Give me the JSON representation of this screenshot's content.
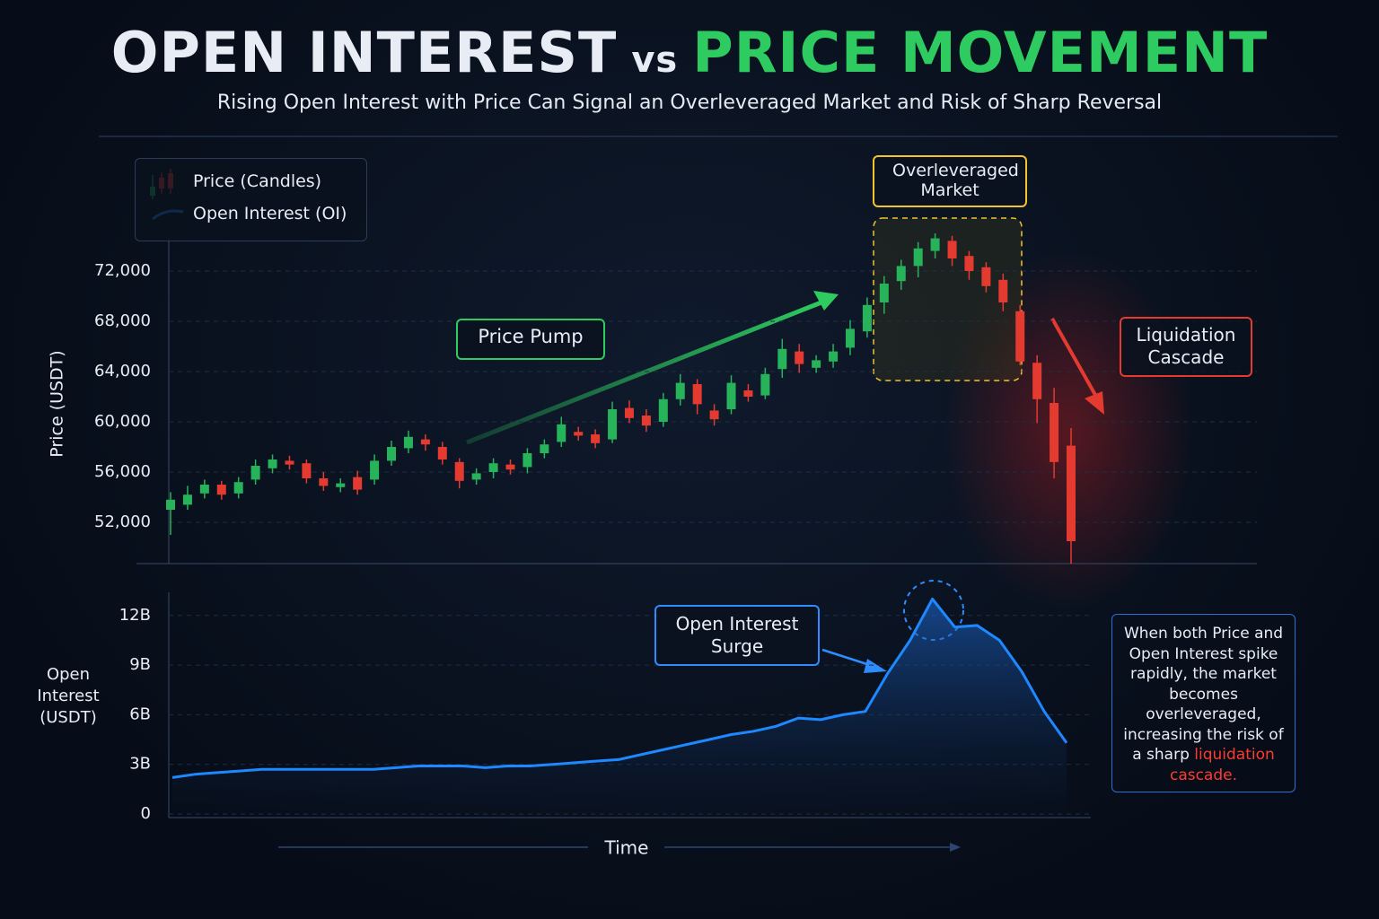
{
  "header": {
    "title_part1": "OPEN INTEREST",
    "title_part2": "vs",
    "title_part3": "PRICE MOVEMENT",
    "title_part3_color": "#2ecc60",
    "subtitle": "Rising Open Interest with Price Can Signal an Overleveraged Market and Risk of Sharp Reversal"
  },
  "chart_data": [
    {
      "type": "candlestick",
      "y_label": "Price (USDT)",
      "ylim": [
        48700,
        75000
      ],
      "yticks": [
        {
          "value": 52000,
          "label": "52,000"
        },
        {
          "value": 56000,
          "label": "56,000"
        },
        {
          "value": 60000,
          "label": "60,000"
        },
        {
          "value": 64000,
          "label": "64,000"
        },
        {
          "value": 68000,
          "label": "68,000"
        },
        {
          "value": 72000,
          "label": "72,000"
        }
      ],
      "grid": true,
      "series": [
        {
          "name": "Price (Candles)",
          "up_color": "#27b35a",
          "down_color": "#e53a30",
          "open": [
            53000,
            53400,
            54300,
            55000,
            54300,
            55400,
            56300,
            56900,
            56700,
            55500,
            54800,
            55600,
            55400,
            56900,
            57900,
            58600,
            58000,
            56800,
            55400,
            56000,
            56600,
            56400,
            57500,
            58400,
            59200,
            59000,
            58600,
            61100,
            60500,
            60000,
            61800,
            63000,
            60900,
            61000,
            62500,
            62100,
            64200,
            65600,
            64300,
            64800,
            65900,
            67200,
            69500,
            71200,
            72400,
            73600,
            74400,
            73200,
            72300,
            71300,
            68800,
            64700,
            61500,
            58100
          ],
          "high": [
            54400,
            54900,
            55400,
            55300,
            55600,
            57000,
            57400,
            57300,
            57000,
            56000,
            55500,
            56100,
            57400,
            58500,
            59300,
            59000,
            58400,
            57100,
            56300,
            57100,
            57000,
            57900,
            58600,
            60400,
            59600,
            59400,
            61600,
            61700,
            61000,
            62300,
            63800,
            63400,
            61400,
            63700,
            63000,
            64300,
            66600,
            66200,
            65300,
            66200,
            68100,
            69900,
            71600,
            72900,
            74300,
            75000,
            74800,
            73600,
            72700,
            71800,
            69300,
            65300,
            62700,
            59500
          ],
          "low": [
            51000,
            53000,
            53900,
            53800,
            53900,
            55000,
            55900,
            56200,
            55100,
            54500,
            54400,
            54200,
            55000,
            56500,
            57500,
            57700,
            56600,
            54700,
            55000,
            55500,
            55800,
            55900,
            57100,
            58000,
            58500,
            57900,
            58300,
            59900,
            59200,
            59600,
            61300,
            60600,
            59700,
            60600,
            61600,
            61800,
            63500,
            63900,
            63900,
            64300,
            65300,
            66700,
            68600,
            70500,
            71500,
            73000,
            72400,
            71300,
            70300,
            68800,
            64500,
            59900,
            55500,
            48700
          ],
          "close": [
            53800,
            54200,
            55000,
            54200,
            55200,
            56500,
            57000,
            56600,
            55500,
            54900,
            55100,
            54600,
            56900,
            58000,
            58800,
            58200,
            57000,
            55300,
            55900,
            56700,
            56200,
            57500,
            58200,
            59800,
            58900,
            58300,
            61000,
            60300,
            59700,
            61800,
            63100,
            61400,
            60200,
            63100,
            62000,
            63800,
            65800,
            64600,
            64900,
            65600,
            67400,
            69300,
            71000,
            72400,
            73800,
            74600,
            73000,
            72000,
            70800,
            69500,
            64800,
            61800,
            56800,
            50500
          ]
        }
      ],
      "annotations": [
        {
          "text": "Price Pump",
          "color": "#2ecc60"
        },
        {
          "text": "Overleveraged Market",
          "color": "#f2c230"
        },
        {
          "text": "Liquidation Cascade",
          "color": "#e53a30"
        }
      ]
    },
    {
      "type": "area",
      "x_label": "Time",
      "y_label": "Open Interest (USDT)",
      "ylim": [
        0,
        13400000000
      ],
      "yticks": [
        0,
        {
          "value": 3000000000,
          "label": "3B"
        },
        {
          "value": 6000000000,
          "label": "6B"
        },
        {
          "value": 9000000000,
          "label": "9B"
        },
        {
          "value": 12000000000,
          "label": "12B"
        }
      ],
      "grid": true,
      "series": [
        {
          "name": "Open Interest (OI)",
          "color": "#1e88ff",
          "values": [
            2200000000,
            2400000000,
            2500000000,
            2600000000,
            2700000000,
            2700000000,
            2700000000,
            2700000000,
            2700000000,
            2700000000,
            2800000000,
            2900000000,
            2900000000,
            2900000000,
            2800000000,
            2900000000,
            2900000000,
            3000000000,
            3100000000,
            3200000000,
            3300000000,
            3600000000,
            3900000000,
            4200000000,
            4500000000,
            4800000000,
            5000000000,
            5300000000,
            5800000000,
            5700000000,
            6000000000,
            6200000000,
            8500000000,
            10500000000,
            13000000000,
            11300000000,
            11400000000,
            10500000000,
            8600000000,
            6200000000,
            4300000000
          ]
        }
      ],
      "annotations": [
        {
          "text": "Open Interest Surge",
          "color": "#2f8cff"
        }
      ]
    }
  ],
  "note": {
    "text": "When both Price and Open Interest spike rapidly, the market becomes overleveraged, increasing the risk of a sharp",
    "highlight": "liquidation cascade.",
    "highlight_color": "#ff3b30"
  }
}
